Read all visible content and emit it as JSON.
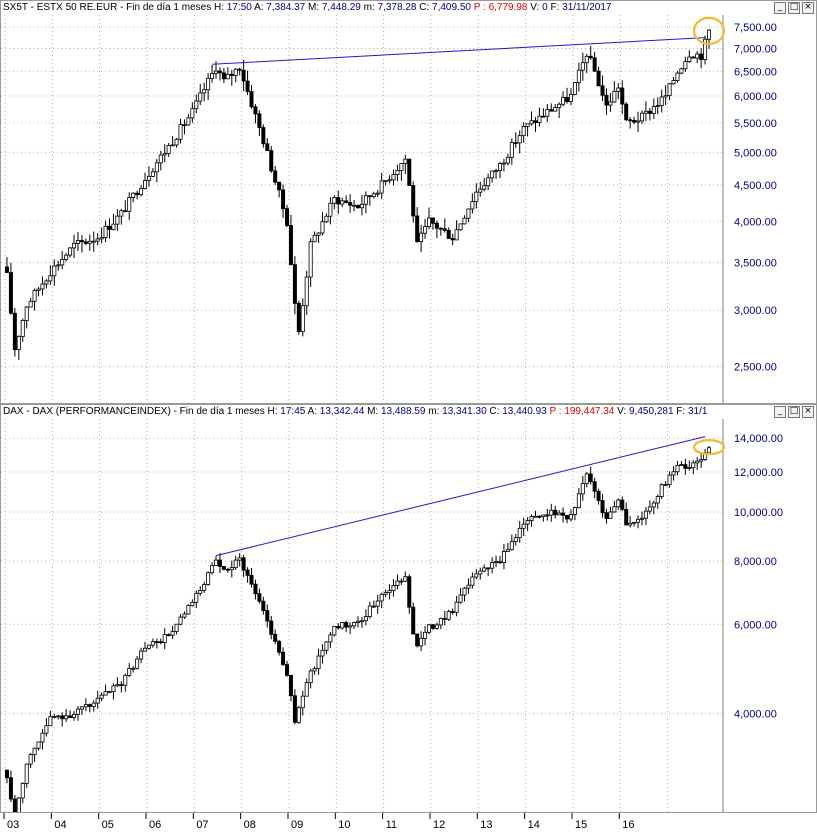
{
  "colors": {
    "candle": "#000000",
    "trendline": "#1a1ad6",
    "highlight": "#f5b82e",
    "grid": "#b0b0b0",
    "axis_text": "#00008b",
    "alert_red": "#e00000"
  },
  "panels": [
    {
      "header": {
        "symbol": "SX5T - ESTX 50 RE.EUR - Fin de día 1 meses",
        "h_label": "H:",
        "h_value": "17:50",
        "a_label": "A:",
        "a_value": "7,384.37",
        "m_label": "M:",
        "m_value": "7,448.29",
        "mm_label": "m:",
        "mm_value": "7,378.28",
        "c_label": "C:",
        "c_value": "7,409.50",
        "p_label": "P :",
        "p_value": "6,779.98",
        "v_label": "V:",
        "v_value": "0",
        "f_label": "F:",
        "f_value": "31/11/2017"
      },
      "buttons": [
        "_",
        "□",
        "×"
      ]
    },
    {
      "header": {
        "symbol": "DAX - DAX (PERFORMANCEINDEX) - Fin de día 1 meses",
        "h_label": "H:",
        "h_value": "17:45",
        "a_label": "A:",
        "a_value": "13,342.44",
        "m_label": "M:",
        "m_value": "13,488.59",
        "mm_label": "m:",
        "mm_value": "13,341.30",
        "c_label": "C:",
        "c_value": "13,440.93",
        "p_label": "P :",
        "p_value": "199,447.34",
        "v_label": "V:",
        "v_value": "9,450,281",
        "f_label": "F:",
        "f_value": "31/1"
      },
      "buttons": [
        "_",
        "□",
        "×"
      ]
    }
  ],
  "chart_data": [
    {
      "type": "candlestick",
      "title": "SX5T - ESTX 50 RE.EUR - Fin de día 1 meses",
      "scale": "log",
      "ylim": [
        2250,
        7700
      ],
      "yticks": [
        "7,500.00",
        "7,000.00",
        "6,500.00",
        "6,000.00",
        "5,500.00",
        "5,000.00",
        "4,500.00",
        "4,000.00",
        "3,500.00",
        "3,000.00",
        "2,500.00"
      ],
      "ytick_values": [
        7500,
        7000,
        6500,
        6000,
        5500,
        5000,
        4500,
        4000,
        3500,
        3000,
        2500
      ],
      "x_start": "2003-01",
      "x_end": "2017-11",
      "monthly_close_anchors": [
        [
          "2003-01",
          3350
        ],
        [
          "2003-03",
          2650
        ],
        [
          "2003-06",
          3050
        ],
        [
          "2003-12",
          3400
        ],
        [
          "2004-06",
          3700
        ],
        [
          "2004-12",
          3800
        ],
        [
          "2005-06",
          4100
        ],
        [
          "2005-12",
          4600
        ],
        [
          "2006-06",
          5100
        ],
        [
          "2006-12",
          5700
        ],
        [
          "2007-06",
          6600
        ],
        [
          "2007-08",
          6300
        ],
        [
          "2007-12",
          6600
        ],
        [
          "2008-06",
          5200
        ],
        [
          "2008-12",
          4000
        ],
        [
          "2009-02",
          3050
        ],
        [
          "2009-03",
          2800
        ],
        [
          "2009-06",
          3700
        ],
        [
          "2009-12",
          4300
        ],
        [
          "2010-06",
          4200
        ],
        [
          "2010-12",
          4500
        ],
        [
          "2011-06",
          4900
        ],
        [
          "2011-08",
          4100
        ],
        [
          "2011-09",
          3700
        ],
        [
          "2011-12",
          4000
        ],
        [
          "2012-06",
          3800
        ],
        [
          "2012-12",
          4400
        ],
        [
          "2013-06",
          4800
        ],
        [
          "2013-12",
          5400
        ],
        [
          "2014-06",
          5700
        ],
        [
          "2014-12",
          6000
        ],
        [
          "2015-04",
          6900
        ],
        [
          "2015-06",
          6500
        ],
        [
          "2015-09",
          5800
        ],
        [
          "2015-12",
          6200
        ],
        [
          "2016-02",
          5500
        ],
        [
          "2016-06",
          5600
        ],
        [
          "2016-12",
          6000
        ],
        [
          "2017-03",
          6500
        ],
        [
          "2017-06",
          6900
        ],
        [
          "2017-09",
          6850
        ],
        [
          "2017-11",
          7409.5
        ]
      ],
      "trendline": [
        [
          "2007-05",
          6650
        ],
        [
          "2017-10",
          7250
        ]
      ]
    },
    {
      "type": "candlestick",
      "title": "DAX - DAX (PERFORMANCEINDEX) - Fin de día 1 meses",
      "scale": "log",
      "ylim": [
        2600,
        15000
      ],
      "yticks": [
        "14,000.00",
        "12,000.00",
        "10,000.00",
        "8,000.00",
        "6,000.00",
        "4,000.00"
      ],
      "ytick_values": [
        14000,
        12000,
        10000,
        8000,
        6000,
        4000
      ],
      "x_start": "2003-01",
      "x_end": "2017-11",
      "monthly_close_anchors": [
        [
          "2003-01",
          3000
        ],
        [
          "2003-03",
          2500
        ],
        [
          "2003-06",
          3200
        ],
        [
          "2003-12",
          3900
        ],
        [
          "2004-06",
          4000
        ],
        [
          "2004-12",
          4250
        ],
        [
          "2005-06",
          4600
        ],
        [
          "2005-12",
          5400
        ],
        [
          "2006-06",
          5700
        ],
        [
          "2006-12",
          6600
        ],
        [
          "2007-06",
          8000
        ],
        [
          "2007-08",
          7600
        ],
        [
          "2007-12",
          8100
        ],
        [
          "2008-06",
          6400
        ],
        [
          "2008-12",
          4800
        ],
        [
          "2009-02",
          3850
        ],
        [
          "2009-03",
          4100
        ],
        [
          "2009-06",
          4800
        ],
        [
          "2009-12",
          5950
        ],
        [
          "2010-06",
          6000
        ],
        [
          "2010-12",
          6900
        ],
        [
          "2011-06",
          7400
        ],
        [
          "2011-08",
          5800
        ],
        [
          "2011-09",
          5500
        ],
        [
          "2011-12",
          5900
        ],
        [
          "2012-06",
          6400
        ],
        [
          "2012-12",
          7600
        ],
        [
          "2013-06",
          8000
        ],
        [
          "2013-12",
          9550
        ],
        [
          "2014-06",
          10000
        ],
        [
          "2014-12",
          9800
        ],
        [
          "2015-04",
          11900
        ],
        [
          "2015-06",
          11000
        ],
        [
          "2015-09",
          9700
        ],
        [
          "2015-12",
          10700
        ],
        [
          "2016-02",
          9500
        ],
        [
          "2016-06",
          9700
        ],
        [
          "2016-12",
          11500
        ],
        [
          "2017-03",
          12300
        ],
        [
          "2017-06",
          12300
        ],
        [
          "2017-09",
          12800
        ],
        [
          "2017-11",
          13440.93
        ]
      ],
      "trendline": [
        [
          "2007-06",
          8200
        ],
        [
          "2017-10",
          14100
        ]
      ]
    }
  ],
  "x_axis_labels": [
    "03",
    "04",
    "05",
    "06",
    "07",
    "08",
    "09",
    "10",
    "11",
    "12",
    "13",
    "14",
    "15",
    "16"
  ]
}
